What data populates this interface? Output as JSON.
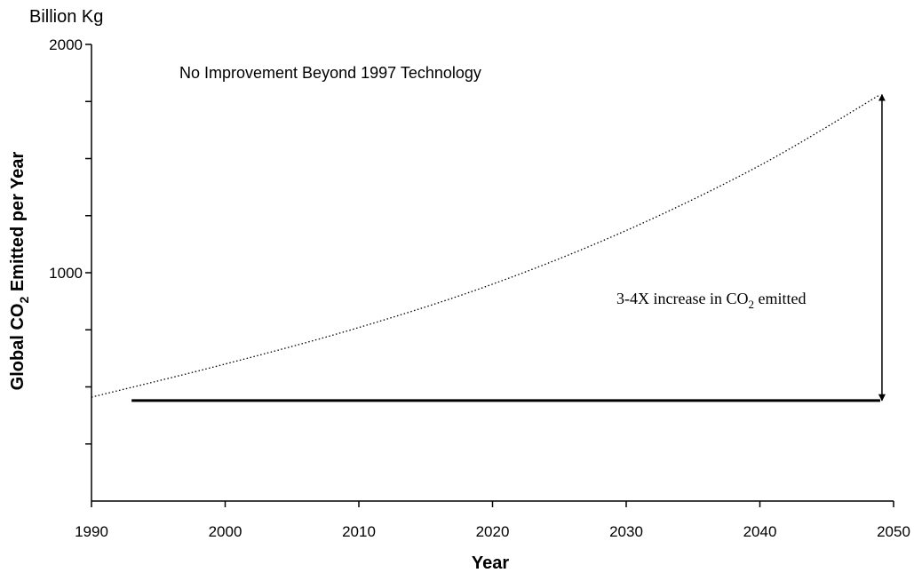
{
  "chart_data": {
    "type": "line",
    "title": "No Improvement Beyond 1997 Technology",
    "unit_label": "Billion Kg",
    "xlabel": "Year",
    "ylabel": {
      "main": "Global CO",
      "sub": "2",
      "rest": " Emitted per Year"
    },
    "xlim": [
      1990,
      2050
    ],
    "ylim": [
      0,
      2000
    ],
    "x_ticks": [
      1990,
      2000,
      2010,
      2020,
      2030,
      2040,
      2050
    ],
    "y_tick_values": [
      0,
      250,
      500,
      750,
      1000,
      1250,
      1500,
      1750,
      2000
    ],
    "y_tick_labels": [
      {
        "value": 1000,
        "label": "1000"
      },
      {
        "value": 2000,
        "label": "2000"
      }
    ],
    "grid": false,
    "series": [
      {
        "style": "dotted",
        "x": [
          1990,
          2000,
          2010,
          2020,
          2030,
          2040,
          2049
        ],
        "y": [
          455,
          600,
          760,
          950,
          1185,
          1470,
          1780
        ]
      },
      {
        "style": "solid",
        "x": [
          1993,
          2049
        ],
        "y": [
          440,
          440
        ]
      }
    ],
    "annotations": [
      {
        "text": {
          "pre": "3-4X increase in CO",
          "sub": "2",
          "post": " emitted"
        },
        "arrow": {
          "x": 2049,
          "y_from": 440,
          "y_to": 1780,
          "double": true
        }
      }
    ]
  }
}
